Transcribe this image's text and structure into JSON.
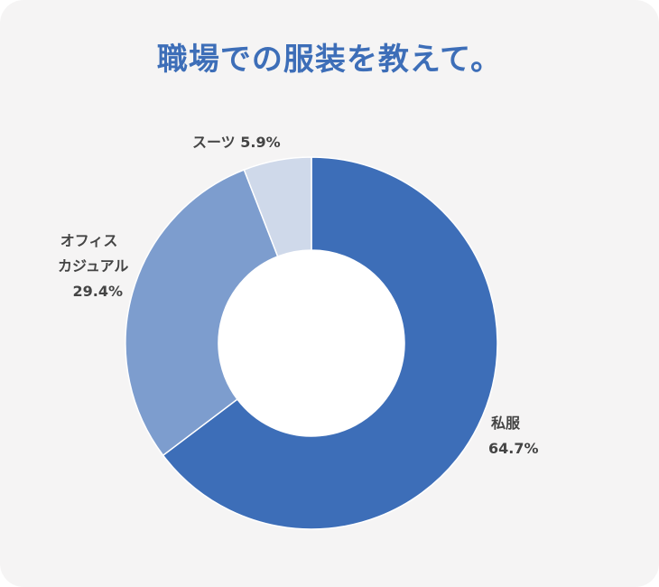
{
  "title": "職場での服装を教えて。",
  "colors": {
    "background": "#f5f4f4",
    "title": "#3d6eb8",
    "label": "#444444"
  },
  "chart_data": {
    "type": "pie",
    "donut": true,
    "title": "職場での服装を教えて。",
    "categories": [
      "私服",
      "オフィスカジュアル",
      "スーツ"
    ],
    "values": [
      64.7,
      29.4,
      5.9
    ],
    "unit": "%",
    "colors": [
      "#3d6eb8",
      "#7d9dce",
      "#cfd9ea"
    ],
    "labels": [
      {
        "lines": [
          "私服",
          "64.7%"
        ]
      },
      {
        "lines": [
          "オフィス",
          "カジュアル",
          "29.4%"
        ]
      },
      {
        "lines": [
          "スーツ 5.9%"
        ]
      }
    ]
  }
}
